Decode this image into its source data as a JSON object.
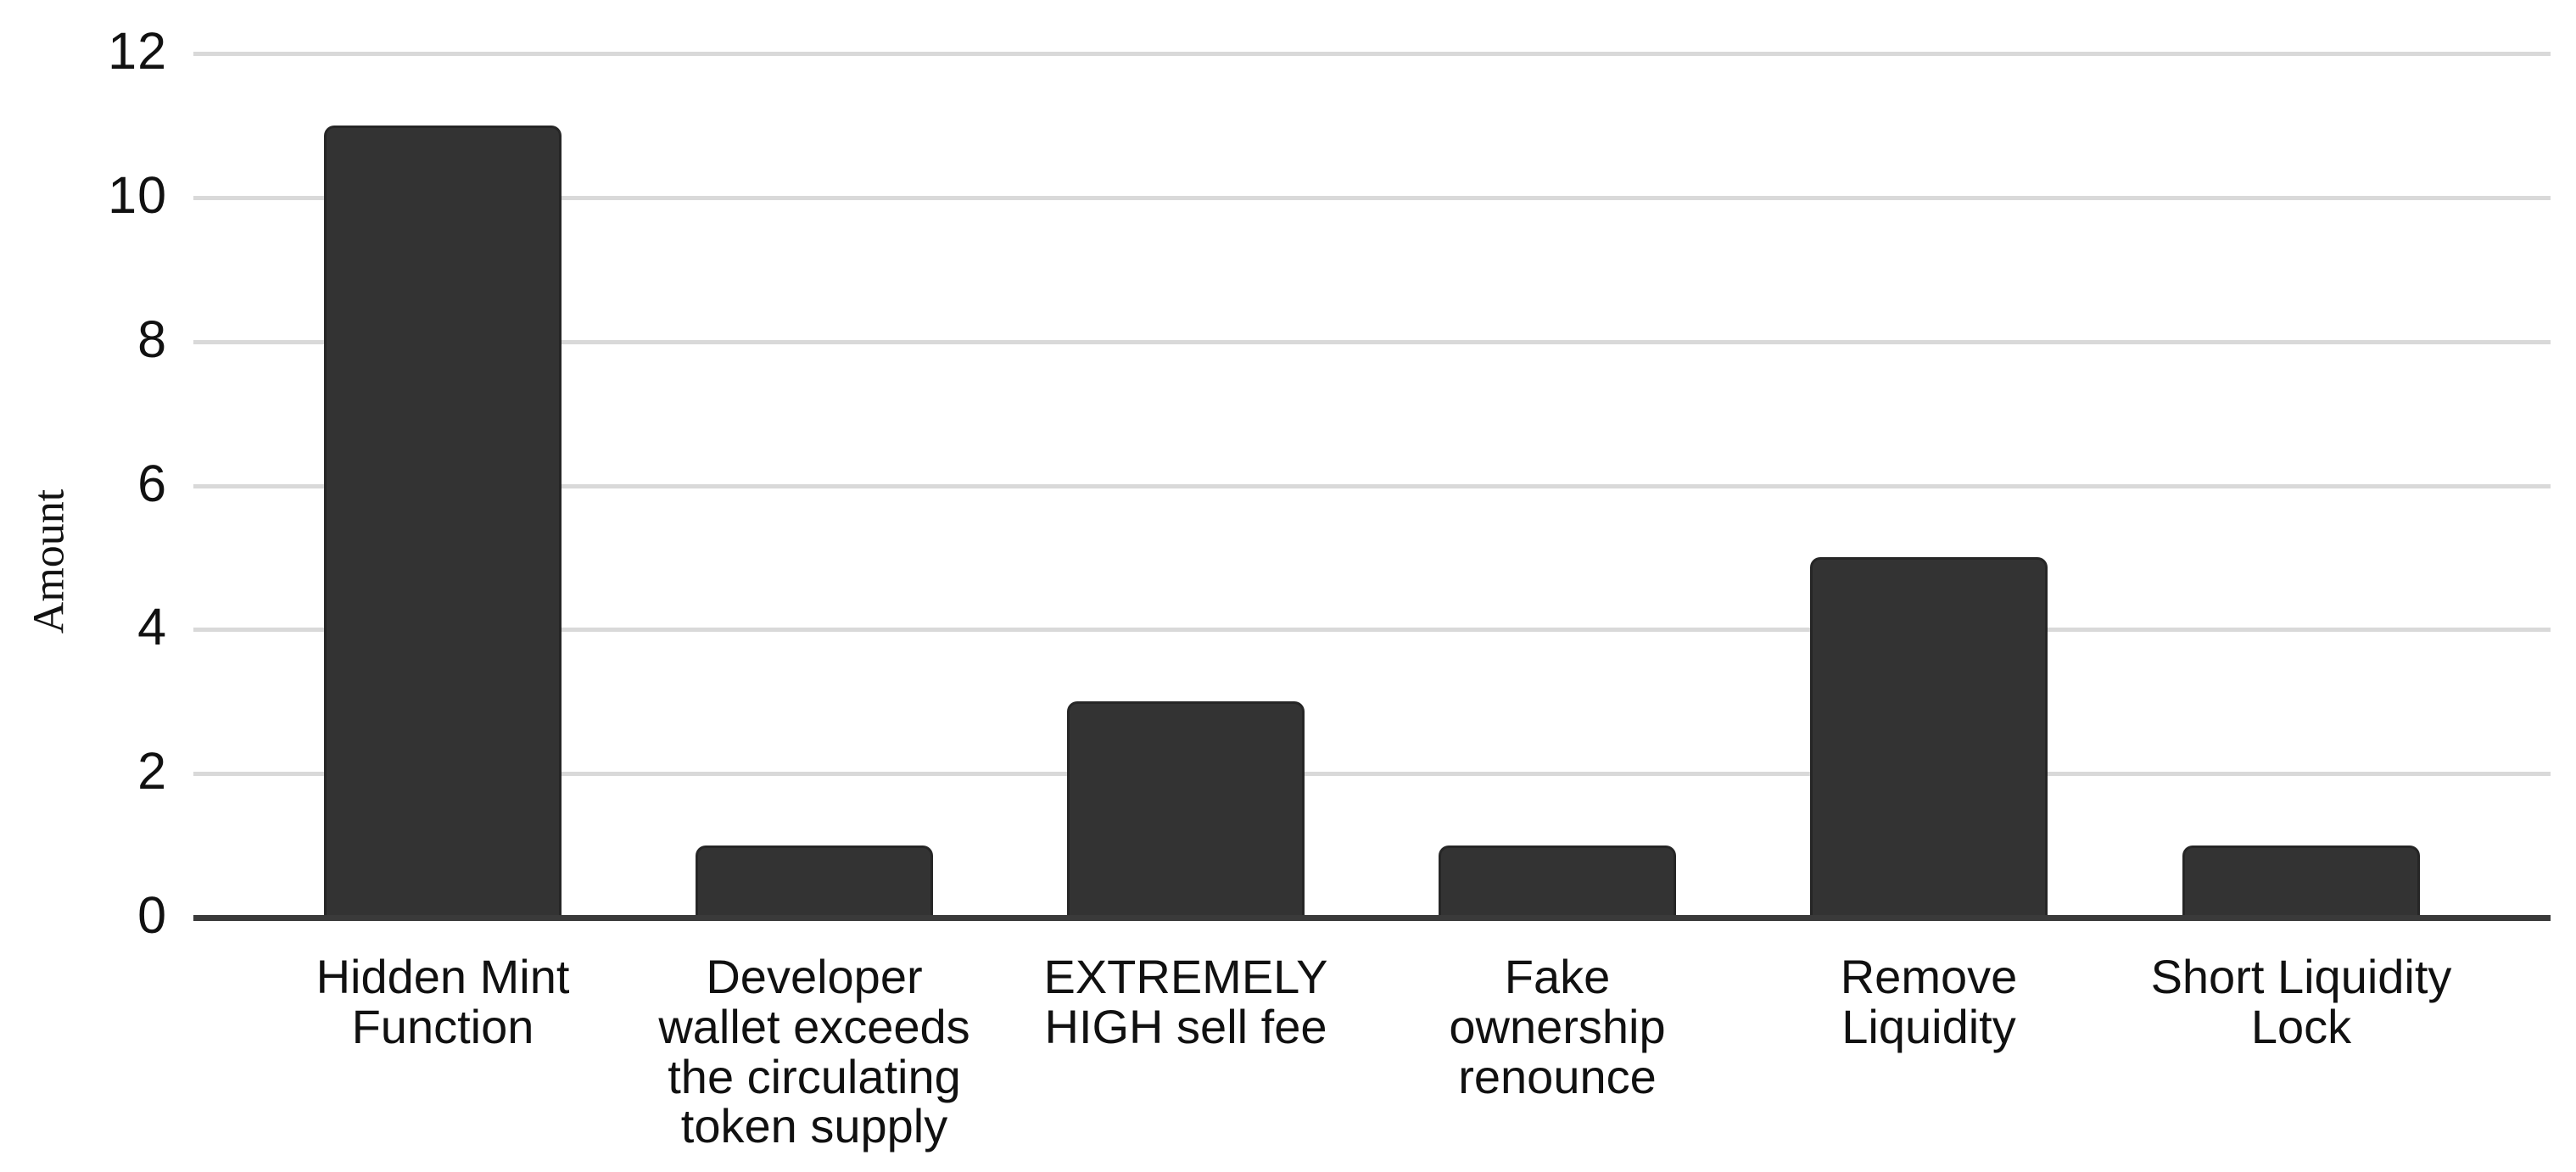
{
  "chart_data": {
    "type": "bar",
    "title": "",
    "xlabel": "",
    "ylabel": "Amount",
    "categories": [
      "Hidden Mint Function",
      "Developer wallet exceeds the circulating token supply",
      "EXTREMELY HIGH sell fee",
      "Fake ownership renounce",
      "Remove Liquidity",
      "Short Liquidity Lock"
    ],
    "category_display_lines": [
      [
        "Hidden Mint",
        "Function"
      ],
      [
        "Developer",
        "wallet exceeds",
        "the circulating",
        "token supply"
      ],
      [
        "EXTREMELY",
        "HIGH sell fee"
      ],
      [
        "Fake",
        "ownership",
        "renounce"
      ],
      [
        "Remove",
        "Liquidity"
      ],
      [
        "Short Liquidity",
        "Lock"
      ]
    ],
    "values": [
      11,
      1,
      3,
      1,
      5,
      1
    ],
    "y_ticks": [
      0,
      2,
      4,
      6,
      8,
      10,
      12
    ],
    "ylim": [
      0,
      12
    ],
    "grid": true,
    "legend_position": "none",
    "colors": {
      "bar_fill": "#333333",
      "bar_border": "#262626",
      "gridline": "#d9d9d9",
      "axis_line": "#3a3a3a",
      "text": "#111111",
      "background": "#ffffff"
    }
  }
}
